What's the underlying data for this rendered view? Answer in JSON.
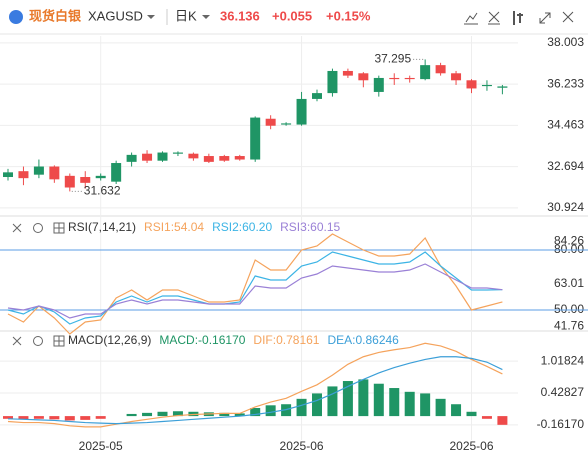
{
  "header": {
    "name": "现货白银",
    "symbol": "XAGUSD",
    "period": "日K",
    "price": "36.136",
    "change": "+0.055",
    "change_pct": "+0.15%"
  },
  "chart_data": [
    {
      "type": "candlestick",
      "up_color": "#1f9565",
      "down_color": "#ee4a4a",
      "grid": true,
      "ylim": [
        30.62,
        38.3
      ],
      "yticks": [
        30.924,
        32.694,
        34.463,
        36.233,
        38.003
      ],
      "open": [
        32.25,
        32.5,
        32.35,
        32.7,
        32.3,
        32.25,
        32.2,
        32.05,
        32.9,
        33.25,
        32.95,
        33.25,
        33.25,
        33.15,
        33.15,
        33.15,
        33.0,
        34.75,
        34.5,
        34.5,
        35.6,
        35.85,
        36.8,
        36.7,
        35.9,
        36.5,
        36.5,
        36.45,
        37.05,
        36.7,
        36.4,
        36.15,
        36.081
      ],
      "high": [
        32.6,
        32.7,
        33.0,
        32.75,
        32.4,
        32.5,
        32.4,
        32.95,
        33.3,
        33.4,
        33.35,
        33.35,
        33.3,
        33.25,
        33.2,
        33.2,
        34.85,
        34.9,
        34.6,
        35.9,
        36.0,
        36.9,
        36.9,
        36.75,
        36.6,
        36.7,
        36.6,
        37.295,
        37.15,
        36.8,
        36.45,
        36.4,
        36.2
      ],
      "low": [
        32.1,
        31.9,
        32.2,
        32.0,
        31.632,
        31.75,
        32.1,
        31.95,
        32.7,
        32.85,
        32.9,
        33.15,
        32.95,
        32.85,
        32.9,
        32.95,
        32.9,
        34.3,
        34.45,
        34.45,
        35.5,
        35.7,
        36.5,
        36.1,
        35.7,
        36.2,
        36.3,
        36.4,
        36.6,
        36.2,
        35.85,
        35.95,
        35.8
      ],
      "close": [
        32.45,
        32.2,
        32.7,
        32.15,
        31.8,
        32.0,
        32.3,
        32.85,
        33.2,
        32.95,
        33.3,
        33.3,
        33.05,
        32.9,
        32.95,
        33.0,
        34.8,
        34.45,
        34.55,
        35.6,
        35.85,
        36.8,
        36.6,
        36.4,
        36.5,
        36.45,
        36.45,
        37.05,
        36.7,
        36.4,
        36.05,
        36.2,
        36.136
      ]
    },
    {
      "type": "line",
      "title": "RSI(7,14,21)",
      "ylim": [
        40,
        96
      ],
      "yticks": [
        41.76,
        {
          "value": 50,
          "label": "50.00"
        },
        63.01,
        {
          "value": 80,
          "label": "80.00"
        },
        84.26
      ],
      "hlines": [
        80,
        50
      ],
      "hline_color": "#5b9ee6",
      "series": [
        {
          "name": "RSI1:54.04",
          "color": "#f5a35c",
          "values": [
            48,
            44,
            52,
            46,
            38,
            44,
            45,
            56,
            60,
            55,
            60,
            60,
            57,
            54,
            54,
            55,
            75,
            70,
            70,
            80,
            82,
            88,
            84,
            80,
            77,
            77,
            78,
            86,
            72,
            62,
            50,
            52,
            54.04
          ]
        },
        {
          "name": "RSI2:60.20",
          "color": "#3cb4e5",
          "values": [
            50,
            48,
            52,
            49,
            43,
            46,
            47,
            54,
            57,
            54,
            57,
            57,
            55,
            53,
            53,
            54,
            67,
            65,
            65,
            72,
            74,
            79,
            77,
            75,
            73,
            73,
            74,
            79,
            72,
            66,
            60,
            60,
            60.2
          ]
        },
        {
          "name": "RSI3:60.15",
          "color": "#9a80d6",
          "values": [
            51,
            50,
            52,
            50,
            46,
            48,
            48,
            53,
            55,
            53,
            55,
            55,
            54,
            53,
            53,
            53,
            62,
            61,
            61,
            66,
            68,
            72,
            71,
            70,
            69,
            69,
            70,
            73,
            69,
            65,
            61,
            61,
            60.15
          ]
        }
      ]
    },
    {
      "type": "combo",
      "title": "MACD(12,26,9)",
      "ylim": [
        -0.48,
        1.54
      ],
      "yticks": [
        {
          "value": -0.1617,
          "label": "-0.16170"
        },
        0.42827,
        1.01824
      ],
      "grid": true,
      "categories": [
        null,
        null,
        null,
        null,
        null,
        null,
        "2025-05",
        null,
        null,
        null,
        null,
        null,
        null,
        null,
        null,
        null,
        null,
        null,
        null,
        "2025-06",
        null,
        null,
        null,
        null,
        null,
        null,
        null,
        null,
        null,
        null,
        "2025-06",
        null,
        null
      ],
      "series": [
        {
          "name": "MACD:-0.16170",
          "kind": "bar",
          "color": "#1f9565",
          "negative_color": "#ee4a4a",
          "values": [
            -0.05,
            -0.06,
            -0.05,
            -0.06,
            -0.08,
            -0.07,
            -0.05,
            0.0,
            0.04,
            0.06,
            0.08,
            0.09,
            0.08,
            0.07,
            0.06,
            0.05,
            0.15,
            0.2,
            0.22,
            0.32,
            0.42,
            0.55,
            0.65,
            0.68,
            0.6,
            0.52,
            0.45,
            0.42,
            0.32,
            0.22,
            0.08,
            -0.05,
            -0.1617
          ]
        },
        {
          "name": "DIF:0.78161",
          "kind": "line",
          "color": "#f5a35c",
          "values": [
            -0.1,
            -0.12,
            -0.12,
            -0.14,
            -0.18,
            -0.2,
            -0.2,
            -0.15,
            -0.1,
            -0.06,
            -0.02,
            0.01,
            0.03,
            0.04,
            0.05,
            0.05,
            0.17,
            0.26,
            0.33,
            0.46,
            0.58,
            0.76,
            0.96,
            1.1,
            1.18,
            1.23,
            1.27,
            1.35,
            1.3,
            1.2,
            1.05,
            0.92,
            0.78161
          ]
        },
        {
          "name": "DEA:0.86246",
          "kind": "line",
          "color": "#3c9fd8",
          "values": [
            -0.05,
            -0.06,
            -0.07,
            -0.08,
            -0.1,
            -0.12,
            -0.13,
            -0.14,
            -0.13,
            -0.12,
            -0.1,
            -0.08,
            -0.06,
            -0.04,
            -0.02,
            0.0,
            0.03,
            0.07,
            0.12,
            0.2,
            0.29,
            0.41,
            0.55,
            0.68,
            0.8,
            0.9,
            0.98,
            1.05,
            1.1,
            1.1,
            1.07,
            1.0,
            0.86246
          ]
        }
      ]
    }
  ]
}
